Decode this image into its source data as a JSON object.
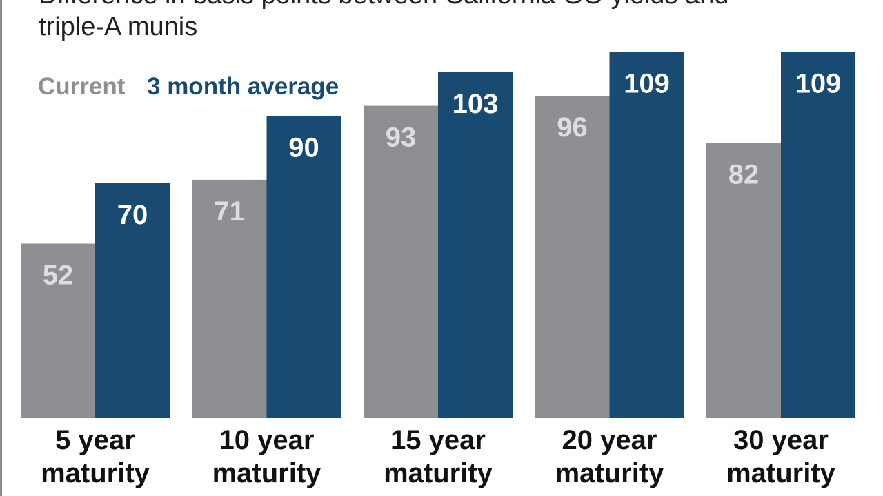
{
  "subtitle": {
    "line1": "Difference in basis points between California GO yields and",
    "line2": "triple-A munis"
  },
  "chart_data": {
    "type": "bar",
    "title": "",
    "subtitle": "Difference in basis points between California GO yields and triple-A munis",
    "xlabel": "",
    "ylabel": "",
    "ylim": [
      0,
      115
    ],
    "grid": false,
    "legend_position": "top-left",
    "categories": [
      [
        "5 year",
        "maturity"
      ],
      [
        "10 year",
        "maturity"
      ],
      [
        "15 year",
        "maturity"
      ],
      [
        "20 year",
        "maturity"
      ],
      [
        "30 year",
        "maturity"
      ]
    ],
    "series": [
      {
        "name": "Current",
        "color": "#8e8f93",
        "label_color": "#dcdde0",
        "values": [
          52,
          71,
          93,
          96,
          82
        ]
      },
      {
        "name": "3 month average",
        "color": "#184a72",
        "label_color": "#ffffff",
        "values": [
          70,
          90,
          103,
          109,
          109
        ]
      }
    ]
  }
}
